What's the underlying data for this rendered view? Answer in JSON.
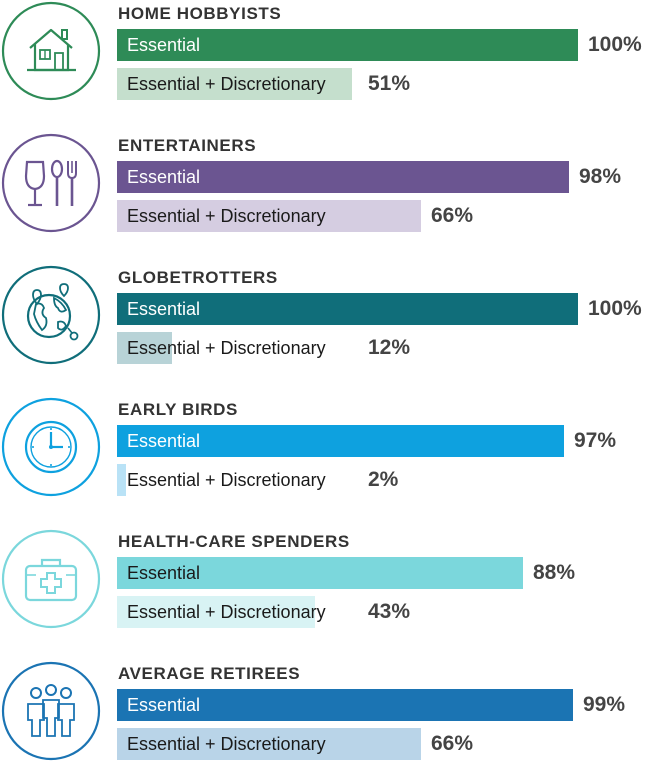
{
  "chart_data": {
    "type": "bar",
    "orientation": "horizontal",
    "xlim": [
      0,
      100
    ],
    "groups": [
      {
        "title": "HOME HOBBYISTS",
        "icon": "house-icon",
        "color": "#2e8b57",
        "light_color": "#c5dfcd",
        "bars": [
          {
            "label": "Essential",
            "value": 100,
            "value_label": "100%"
          },
          {
            "label": "Essential + Discretionary",
            "value": 51,
            "value_label": "51%"
          }
        ]
      },
      {
        "title": "ENTERTAINERS",
        "icon": "wine-glass-utensils-icon",
        "color": "#6b5591",
        "light_color": "#d5cde1",
        "bars": [
          {
            "label": "Essential",
            "value": 98,
            "value_label": "98%"
          },
          {
            "label": "Essential + Discretionary",
            "value": 66,
            "value_label": "66%"
          }
        ]
      },
      {
        "title": "GLOBETROTTERS",
        "icon": "globe-icon",
        "color": "#106e7a",
        "light_color": "#b8d3d7",
        "bars": [
          {
            "label": "Essential",
            "value": 100,
            "value_label": "100%"
          },
          {
            "label": "Essential + Discretionary",
            "value": 12,
            "value_label": "12%"
          }
        ]
      },
      {
        "title": "EARLY BIRDS",
        "icon": "clock-icon",
        "color": "#0ea1df",
        "light_color": "#b9e2f6",
        "bars": [
          {
            "label": "Essential",
            "value": 97,
            "value_label": "97%"
          },
          {
            "label": "Essential + Discretionary",
            "value": 2,
            "value_label": "2%"
          }
        ]
      },
      {
        "title": "HEALTH-CARE SPENDERS",
        "icon": "first-aid-kit-icon",
        "color": "#7bd7dc",
        "light_color": "#d8f3f4",
        "bars": [
          {
            "label": "Essential",
            "value": 88,
            "value_label": "88%"
          },
          {
            "label": "Essential + Discretionary",
            "value": 43,
            "value_label": "43%"
          }
        ]
      },
      {
        "title": "AVERAGE RETIREES",
        "icon": "people-group-icon",
        "color": "#1b74b3",
        "light_color": "#b9d4e8",
        "bars": [
          {
            "label": "Essential",
            "value": 99,
            "value_label": "99%"
          },
          {
            "label": "Essential + Discretionary",
            "value": 66,
            "value_label": "66%"
          }
        ]
      }
    ]
  }
}
